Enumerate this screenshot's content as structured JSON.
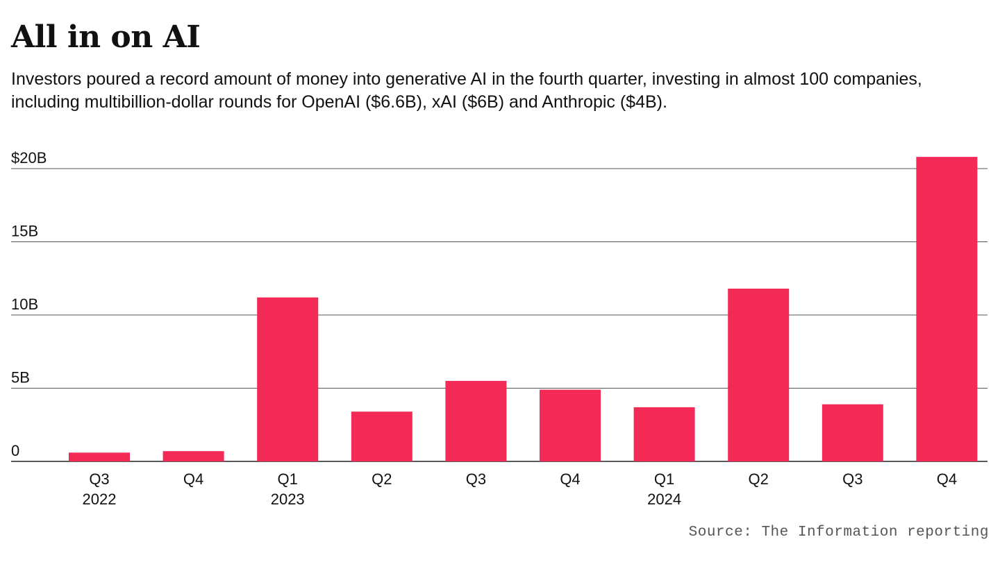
{
  "chart_data": {
    "type": "bar",
    "title": "All in on AI",
    "subtitle": "Investors poured a record amount of money into generative AI in the fourth quarter, investing in almost 100 companies, including multibillion-dollar rounds for OpenAI ($6.6B), xAI ($6B) and Anthropic ($4B).",
    "categories": [
      {
        "quarter": "Q3",
        "year": "2022"
      },
      {
        "quarter": "Q4",
        "year": ""
      },
      {
        "quarter": "Q1",
        "year": "2023"
      },
      {
        "quarter": "Q2",
        "year": ""
      },
      {
        "quarter": "Q3",
        "year": ""
      },
      {
        "quarter": "Q4",
        "year": ""
      },
      {
        "quarter": "Q1",
        "year": "2024"
      },
      {
        "quarter": "Q2",
        "year": ""
      },
      {
        "quarter": "Q3",
        "year": ""
      },
      {
        "quarter": "Q4",
        "year": ""
      }
    ],
    "values": [
      0.6,
      0.7,
      11.2,
      3.4,
      5.5,
      4.9,
      3.7,
      11.8,
      3.9,
      20.8
    ],
    "unit": "billion USD",
    "ylim": [
      0,
      20
    ],
    "yticks": [
      {
        "value": 0,
        "label": "0"
      },
      {
        "value": 5,
        "label": "5B"
      },
      {
        "value": 10,
        "label": "10B"
      },
      {
        "value": 15,
        "label": "15B"
      },
      {
        "value": 20,
        "label": "$20B"
      }
    ],
    "grid": true,
    "bar_color": "#f22a55",
    "gridline_color": "#555555",
    "source": "Source: The Information reporting"
  }
}
